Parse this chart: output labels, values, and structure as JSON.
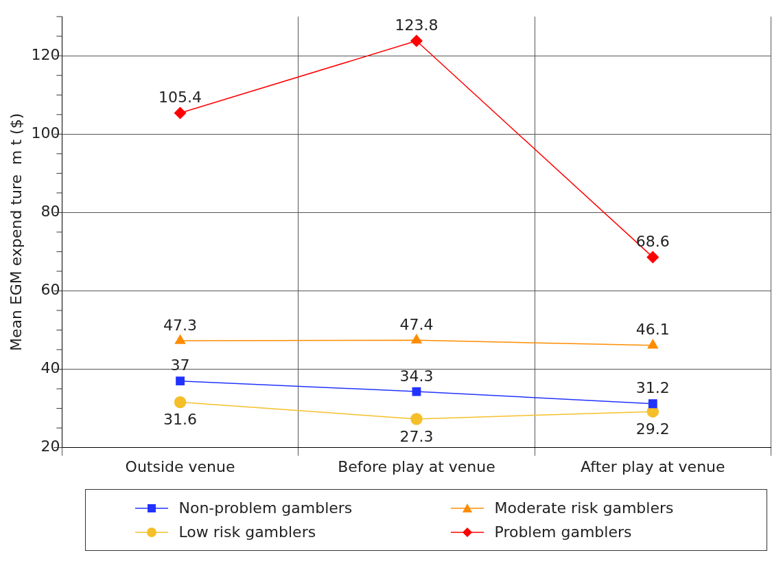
{
  "chart_data": {
    "type": "line",
    "ylabel": "Mean EGM expend ture  m t ($)",
    "categories": [
      "Outside venue",
      "Before play at venue",
      "After play at venue"
    ],
    "series": [
      {
        "name": "Non-problem gamblers",
        "color": "#2233ff",
        "marker": "square",
        "values": [
          37,
          34.3,
          31.2
        ]
      },
      {
        "name": "Moderate risk gamblers",
        "color": "#ff8c00",
        "marker": "triangle",
        "values": [
          47.3,
          47.4,
          46.1
        ]
      },
      {
        "name": "Low risk gamblers",
        "color": "#f5bf2a",
        "marker": "circle",
        "values": [
          31.6,
          27.3,
          29.2
        ]
      },
      {
        "name": "Problem gamblers",
        "color": "#ff0000",
        "marker": "diamond",
        "values": [
          105.4,
          123.8,
          68.6
        ]
      }
    ],
    "ylim": [
      20,
      130
    ],
    "yticks": [
      20,
      {
        "value": 25,
        "label": null
      },
      {
        "value": 30,
        "label": null
      },
      {
        "value": 35,
        "label": null
      },
      40,
      {
        "value": 45,
        "label": null
      },
      {
        "value": 50,
        "label": null
      },
      {
        "value": 55,
        "label": null
      },
      60,
      {
        "value": 65,
        "label": null
      },
      {
        "value": 70,
        "label": null
      },
      {
        "value": 75,
        "label": null
      },
      80,
      {
        "value": 85,
        "label": null
      },
      {
        "value": 90,
        "label": null
      },
      {
        "value": 95,
        "label": null
      },
      100,
      {
        "value": 105,
        "label": null
      },
      {
        "value": 110,
        "label": null
      },
      {
        "value": 115,
        "label": null
      },
      120,
      {
        "value": 125,
        "label": null
      },
      {
        "value": 130,
        "label": null
      }
    ],
    "grid": true,
    "legend": "bottom",
    "data_labels": true,
    "line_style": "solid"
  }
}
